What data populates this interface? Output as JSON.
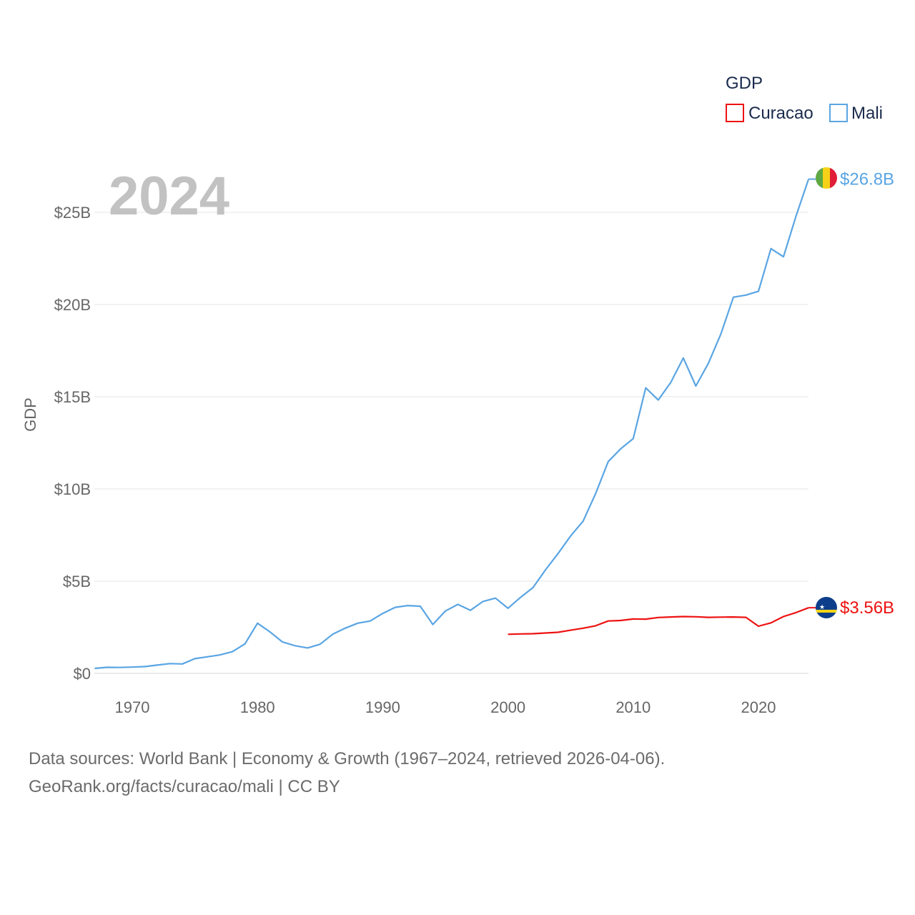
{
  "chart_data": {
    "type": "line",
    "year_label": "2024",
    "ylabel": "GDP",
    "xlabel": "",
    "xlim": [
      1967,
      2024
    ],
    "ylim": [
      0,
      27.5
    ],
    "x_ticks": [
      1970,
      1980,
      1990,
      2000,
      2010,
      2020
    ],
    "y_ticks": [
      {
        "value": 0,
        "label": "$0"
      },
      {
        "value": 5,
        "label": "$5B"
      },
      {
        "value": 10,
        "label": "$10B"
      },
      {
        "value": 15,
        "label": "$15B"
      },
      {
        "value": 20,
        "label": "$20B"
      },
      {
        "value": 25,
        "label": "$25B"
      }
    ],
    "legend": {
      "title": "GDP",
      "position": "top-right",
      "entries": [
        {
          "name": "Curacao",
          "color": "#ee1111"
        },
        {
          "name": "Mali",
          "color": "#5aa5e3"
        }
      ]
    },
    "units": "billions of US dollars",
    "series": [
      {
        "name": "Mali",
        "color": "#5aa5e3",
        "end_label": "$26.8B",
        "flag": "mali-flag",
        "x": [
          1967,
          1968,
          1969,
          1970,
          1971,
          1972,
          1973,
          1974,
          1975,
          1976,
          1977,
          1978,
          1979,
          1980,
          1981,
          1982,
          1983,
          1984,
          1985,
          1986,
          1987,
          1988,
          1989,
          1990,
          1991,
          1992,
          1993,
          1994,
          1995,
          1996,
          1997,
          1998,
          1999,
          2000,
          2001,
          2002,
          2003,
          2004,
          2005,
          2006,
          2007,
          2008,
          2009,
          2010,
          2011,
          2012,
          2013,
          2014,
          2015,
          2016,
          2017,
          2018,
          2019,
          2020,
          2021,
          2022,
          2023,
          2024
        ],
        "values": [
          0.27,
          0.33,
          0.32,
          0.34,
          0.37,
          0.45,
          0.53,
          0.51,
          0.8,
          0.9,
          1.0,
          1.18,
          1.6,
          2.72,
          2.25,
          1.7,
          1.5,
          1.38,
          1.58,
          2.12,
          2.45,
          2.72,
          2.84,
          3.25,
          3.58,
          3.68,
          3.64,
          2.65,
          3.38,
          3.74,
          3.42,
          3.9,
          4.08,
          3.53,
          4.12,
          4.65,
          5.62,
          6.5,
          7.45,
          8.25,
          9.75,
          11.48,
          12.18,
          12.73,
          15.48,
          14.82,
          15.78,
          17.1,
          15.58,
          16.81,
          18.4,
          20.4,
          20.51,
          20.72,
          23.03,
          22.59,
          24.8,
          26.8
        ]
      },
      {
        "name": "Curacao",
        "color": "#ee1111",
        "end_label": "$3.56B",
        "flag": "curacao-flag",
        "x": [
          2000,
          2001,
          2002,
          2003,
          2004,
          2005,
          2006,
          2007,
          2008,
          2009,
          2010,
          2011,
          2012,
          2013,
          2014,
          2015,
          2016,
          2017,
          2018,
          2019,
          2020,
          2021,
          2022,
          2023,
          2024
        ],
        "values": [
          2.12,
          2.14,
          2.15,
          2.19,
          2.23,
          2.34,
          2.45,
          2.58,
          2.84,
          2.87,
          2.95,
          2.94,
          3.03,
          3.06,
          3.08,
          3.07,
          3.04,
          3.05,
          3.06,
          3.04,
          2.56,
          2.74,
          3.08,
          3.3,
          3.56
        ]
      }
    ]
  },
  "footer": {
    "line1": "Data sources: World Bank | Economy & Growth (1967–2024, retrieved 2026-04-06).",
    "line2": "GeoRank.org/facts/curacao/mali | CC BY"
  }
}
